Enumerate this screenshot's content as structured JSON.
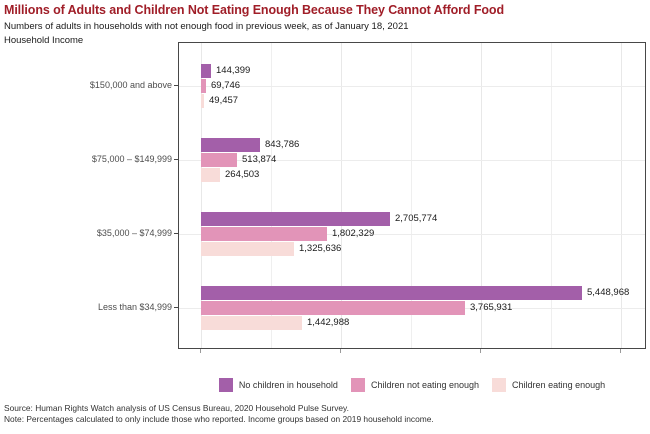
{
  "title": "Millions of Adults and Children Not Eating Enough Because They Cannot Afford Food",
  "subtitle": "Numbers of adults in households with not enough food in previous week, as of January 18, 2021",
  "y_axis_title": "Household Income",
  "chart_data": {
    "type": "bar",
    "orientation": "horizontal",
    "title": "Millions of Adults and Children Not Eating Enough Because They Cannot Afford Food",
    "subtitle": "Numbers of adults in households with not enough food in previous week, as of January 18, 2021",
    "ylabel": "Household Income",
    "xlabel": "",
    "categories": [
      "$150,000 and above",
      "$75,000 – $149,999",
      "$35,000 – $74,999",
      "Less than $34,999"
    ],
    "series": [
      {
        "name": "No children in household",
        "color": "#a35fa9",
        "values": [
          144399,
          843786,
          2705774,
          5448968
        ]
      },
      {
        "name": "Children not eating enough",
        "color": "#e294b8",
        "values": [
          69746,
          513874,
          1802329,
          3765931
        ]
      },
      {
        "name": "Children eating enough",
        "color": "#f8dcd9",
        "values": [
          49457,
          264503,
          1325636,
          1442988
        ]
      }
    ],
    "value_labels": [
      [
        "144,399",
        "843,786",
        "2,705,774",
        "5,448,968"
      ],
      [
        "69,746",
        "513,874",
        "1,802,329",
        "3,765,931"
      ],
      [
        "49,457",
        "264,503",
        "1,325,636",
        "1,442,988"
      ]
    ],
    "xlim": [
      0,
      6400000
    ],
    "gridline_interval": 1000000,
    "grid": true,
    "legend_position": "bottom"
  },
  "footer": {
    "source": "Source: Human Rights Watch analysis of US Census Bureau, 2020 Household Pulse Survey.",
    "note": "Note: Percentages calculated to only include those who reported. Income groups based on 2019 household income."
  }
}
